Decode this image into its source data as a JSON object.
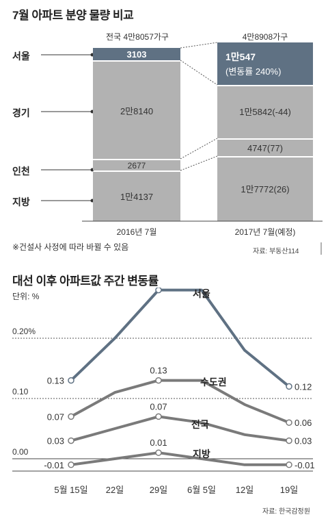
{
  "chart_data": [
    {
      "type": "bar",
      "title": "7월 아파트 분양 물량 비교",
      "categories": [
        "2016년 7월",
        "2017년 7월(예정)"
      ],
      "totals": [
        "전국 4만8057가구",
        "4만8908가구"
      ],
      "series": [
        {
          "name": "서울",
          "values": [
            3103,
            10547
          ],
          "labels": [
            "3103",
            "1만547"
          ],
          "change_label": "(변동률 240%)"
        },
        {
          "name": "경기",
          "values": [
            28140,
            15842
          ],
          "labels": [
            "2만8140",
            "1만5842(-44)"
          ]
        },
        {
          "name": "인천",
          "values": [
            2677,
            4747
          ],
          "labels": [
            "2677",
            "4747(77)"
          ]
        },
        {
          "name": "지방",
          "values": [
            14137,
            17772
          ],
          "labels": [
            "1만4137",
            "1만7772(26)"
          ]
        }
      ],
      "note": "※건설사 사정에 따라 바뀔 수 있음",
      "source": "자료: 부동산114",
      "colors": {
        "seoul": "#5f7183",
        "other": "#b2b2b2"
      }
    },
    {
      "type": "line",
      "title": "대선 이후 아파트값 주간 변동률",
      "unit_label": "단위: %",
      "categories": [
        "5월 15일",
        "22일",
        "29일",
        "6월 5일",
        "12일",
        "19일"
      ],
      "ylim": [
        -0.02,
        0.3
      ],
      "y_ticks": [
        {
          "value": 0.2,
          "label": "0.20%"
        },
        {
          "value": 0.1,
          "label": "0.10"
        },
        {
          "value": 0.0,
          "label": "0.00"
        }
      ],
      "series": [
        {
          "name": "서울",
          "values": [
            0.13,
            0.2,
            0.28,
            0.28,
            0.18,
            0.12
          ],
          "start_label": "0.13",
          "peak_label": "0.28",
          "end_label": "0.12",
          "color": "#5f7183"
        },
        {
          "name": "수도권",
          "values": [
            0.07,
            0.11,
            0.13,
            0.13,
            0.09,
            0.06
          ],
          "start_label": "0.07",
          "peak_label": "0.13",
          "end_label": "0.06",
          "color": "#7a7a7a"
        },
        {
          "name": "전국",
          "values": [
            0.03,
            0.05,
            0.07,
            0.06,
            0.04,
            0.03
          ],
          "start_label": "0.03",
          "peak_label": "0.07",
          "end_label": "0.03",
          "color": "#7a7a7a"
        },
        {
          "name": "지방",
          "values": [
            -0.01,
            0.0,
            0.01,
            0.0,
            -0.01,
            -0.01
          ],
          "start_label": "-0.01",
          "peak_label": "0.01",
          "end_label": "-0.01",
          "color": "#7a7a7a"
        }
      ],
      "source": "자료: 한국감정원"
    }
  ]
}
